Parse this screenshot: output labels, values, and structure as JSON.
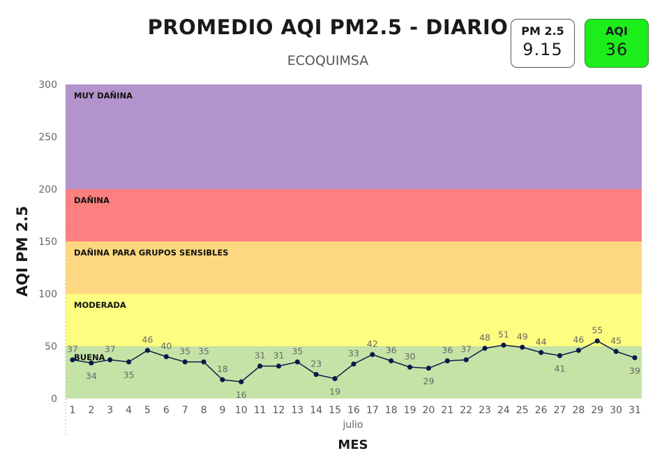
{
  "header": {
    "title": "PROMEDIO AQI PM2.5 - DIARIO",
    "subtitle": "ECOQUIMSA"
  },
  "cards": {
    "pm25": {
      "label": "PM 2.5",
      "value": "9.15"
    },
    "aqi": {
      "label": "AQI",
      "value": "36",
      "color": "#1cee1c"
    }
  },
  "chart_data": {
    "type": "line",
    "title": "PROMEDIO AQI PM2.5 - DIARIO",
    "subtitle": "ECOQUIMSA",
    "xlabel": "MES",
    "ylabel": "AQI PM 2.5",
    "x_group_label": "julio",
    "x": [
      1,
      2,
      3,
      4,
      5,
      6,
      7,
      8,
      9,
      10,
      11,
      12,
      13,
      14,
      15,
      16,
      17,
      18,
      19,
      20,
      21,
      22,
      23,
      24,
      25,
      26,
      27,
      28,
      29,
      30,
      31
    ],
    "y": [
      37,
      34,
      37,
      35,
      46,
      40,
      35,
      35,
      18,
      16,
      31,
      31,
      35,
      23,
      19,
      33,
      42,
      36,
      30,
      29,
      36,
      37,
      48,
      51,
      49,
      44,
      41,
      46,
      55,
      45,
      39
    ],
    "ylim": [
      0,
      300
    ],
    "yticks": [
      0,
      50,
      100,
      150,
      200,
      250,
      300
    ],
    "line_color": "#0b1a4a",
    "bands": [
      {
        "label": "BUENA",
        "from": 0,
        "to": 50,
        "color": "#c5e3a6"
      },
      {
        "label": "MODERADA",
        "from": 100,
        "to": 100,
        "color": "#fdfd80"
      },
      {
        "label": "DAÑINA PARA GRUPOS SENSIBLES",
        "from": 100,
        "to": 150,
        "color": "#fed880"
      },
      {
        "label": "DAÑINA",
        "from": 150,
        "to": 200,
        "color": "#fd7f7f"
      },
      {
        "label": "MUY DAÑINA",
        "from": 200,
        "to": 300,
        "color": "#b293cb"
      }
    ]
  }
}
